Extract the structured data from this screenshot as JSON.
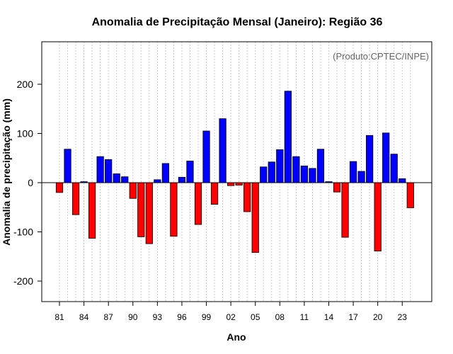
{
  "chart_data": {
    "type": "bar",
    "title": "Anomalia de Precipitação Mensal (Janeiro): Região 36",
    "xlabel": "Ano",
    "ylabel": "Anomalia de precipitação (mm)",
    "credit": "(Produto:CPTEC/INPE)",
    "ylim": [
      -243,
      290
    ],
    "yticks": [
      -200,
      -100,
      0,
      100,
      200
    ],
    "xticks": [
      {
        "year": 1981,
        "label": "81"
      },
      {
        "year": 1984,
        "label": "84"
      },
      {
        "year": 1987,
        "label": "87"
      },
      {
        "year": 1990,
        "label": "90"
      },
      {
        "year": 1993,
        "label": "93"
      },
      {
        "year": 1996,
        "label": "96"
      },
      {
        "year": 1999,
        "label": "99"
      },
      {
        "year": 2002,
        "label": "02"
      },
      {
        "year": 2005,
        "label": "05"
      },
      {
        "year": 2008,
        "label": "08"
      },
      {
        "year": 2011,
        "label": "11"
      },
      {
        "year": 2014,
        "label": "14"
      },
      {
        "year": 2017,
        "label": "17"
      },
      {
        "year": 2020,
        "label": "20"
      },
      {
        "year": 2023,
        "label": "23"
      }
    ],
    "grid": true,
    "positive_color": "#0000ff",
    "negative_color": "#ff0000",
    "years": [
      1981,
      1982,
      1983,
      1984,
      1985,
      1986,
      1987,
      1988,
      1989,
      1990,
      1991,
      1992,
      1993,
      1994,
      1995,
      1996,
      1997,
      1998,
      1999,
      2000,
      2001,
      2002,
      2003,
      2004,
      2005,
      2006,
      2007,
      2008,
      2009,
      2010,
      2011,
      2012,
      2013,
      2014,
      2015,
      2016,
      2017,
      2018,
      2019,
      2020,
      2021,
      2022,
      2023,
      2024
    ],
    "values": [
      -20,
      68,
      -65,
      2,
      -113,
      53,
      47,
      18,
      12,
      -32,
      -110,
      -124,
      6,
      39,
      -109,
      11,
      44,
      -85,
      105,
      -44,
      130,
      -6,
      -5,
      -59,
      -142,
      32,
      42,
      67,
      186,
      53,
      34,
      29,
      68,
      2,
      -19,
      -111,
      43,
      23,
      96,
      -139,
      101,
      58,
      8,
      -51
    ]
  }
}
